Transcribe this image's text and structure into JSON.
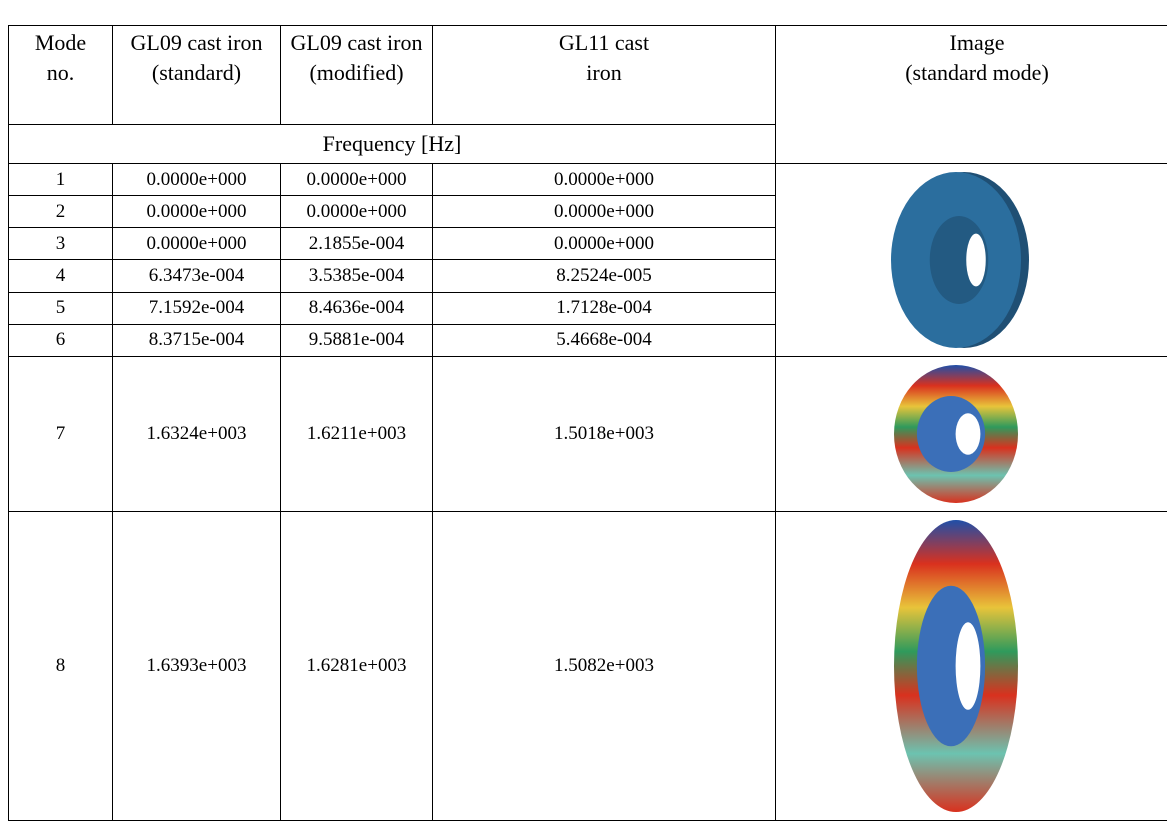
{
  "table": {
    "header": [
      [
        "Mode",
        "no."
      ],
      [
        "GL09 cast iron",
        "(standard)"
      ],
      [
        "GL09 cast iron",
        "(modified)"
      ],
      [
        "GL11 cast",
        "iron"
      ],
      [
        "Image",
        "(standard mode)"
      ]
    ],
    "subheader": "Frequency [Hz]",
    "rows": [
      [
        "1",
        "0.0000e+000",
        "0.0000e+000",
        "0.0000e+000"
      ],
      [
        "2",
        "0.0000e+000",
        "0.0000e+000",
        "0.0000e+000"
      ],
      [
        "3",
        "0.0000e+000",
        "2.1855e-004",
        "0.0000e+000"
      ],
      [
        "4",
        "6.3473e-004",
        "3.5385e-004",
        "8.2524e-005"
      ],
      [
        "5",
        "7.1592e-004",
        "8.4636e-004",
        "1.7128e-004"
      ],
      [
        "6",
        "8.3715e-004",
        "9.5881e-004",
        "5.4668e-004"
      ],
      [
        "7",
        "1.6324e+003",
        "1.6211e+003",
        "1.5018e+003"
      ],
      [
        "8",
        "1.6393e+003",
        "1.6281e+003",
        "1.5082e+003"
      ]
    ]
  }
}
